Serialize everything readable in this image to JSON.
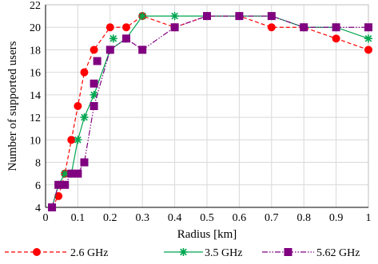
{
  "chart_data": {
    "type": "line",
    "title": "",
    "xlabel": "Radius [km]",
    "ylabel": "Number of supported users",
    "xlim": [
      0,
      1
    ],
    "ylim": [
      4,
      22
    ],
    "xticks": [
      "0",
      "0.1",
      "0.2",
      "0.3",
      "0.4",
      "0.5",
      "0.6",
      "0.7",
      "0.8",
      "0.9",
      "1"
    ],
    "yticks": [
      "4",
      "6",
      "8",
      "10",
      "12",
      "14",
      "16",
      "18",
      "20",
      "22"
    ],
    "grid": "both",
    "legend_position": "bottom",
    "series": [
      {
        "name": "2.6 GHz",
        "color": "#ff0000",
        "line_style": "dashed",
        "marker": "circle",
        "x": [
          0.02,
          0.04,
          0.06,
          0.08,
          0.1,
          0.12,
          0.15,
          0.2,
          0.25,
          0.3,
          0.4,
          0.5,
          0.6,
          0.7,
          0.8,
          0.9,
          1.0
        ],
        "y": [
          4,
          5,
          7,
          10,
          13,
          16,
          18,
          20,
          20,
          21,
          20,
          21,
          21,
          20,
          20,
          19,
          18
        ]
      },
      {
        "name": "3.5 GHz",
        "color": "#00a650",
        "line_style": "solid",
        "marker": "star",
        "x": [
          0.02,
          0.04,
          0.06,
          0.08,
          0.1,
          0.12,
          0.15,
          0.2,
          0.25,
          0.3,
          0.4,
          0.5,
          0.6,
          0.7,
          0.8,
          0.9,
          1.0
        ],
        "y": [
          4,
          6,
          7,
          7,
          10,
          12,
          14,
          18,
          19,
          21,
          21,
          21,
          21,
          21,
          20,
          20,
          19
        ]
      },
      {
        "name": "5.62 GHz",
        "color": "#800080",
        "line_style": "dash-dot-dot",
        "marker": "square",
        "x": [
          0.02,
          0.04,
          0.06,
          0.08,
          0.1,
          0.12,
          0.15,
          0.2,
          0.25,
          0.3,
          0.4,
          0.5,
          0.6,
          0.7,
          0.8,
          0.9,
          1.0
        ],
        "y": [
          4,
          6,
          6,
          7,
          7,
          8,
          13,
          18,
          19,
          18,
          20,
          21,
          21,
          21,
          20,
          20,
          20
        ]
      }
    ],
    "extra_markers": [
      {
        "series_index": 1,
        "x": [
          0.21
        ],
        "y": [
          19
        ]
      },
      {
        "series_index": 2,
        "x": [
          0.15
        ],
        "y": [
          15
        ]
      },
      {
        "series_index": 2,
        "x": [
          0.16
        ],
        "y": [
          17
        ]
      }
    ]
  }
}
